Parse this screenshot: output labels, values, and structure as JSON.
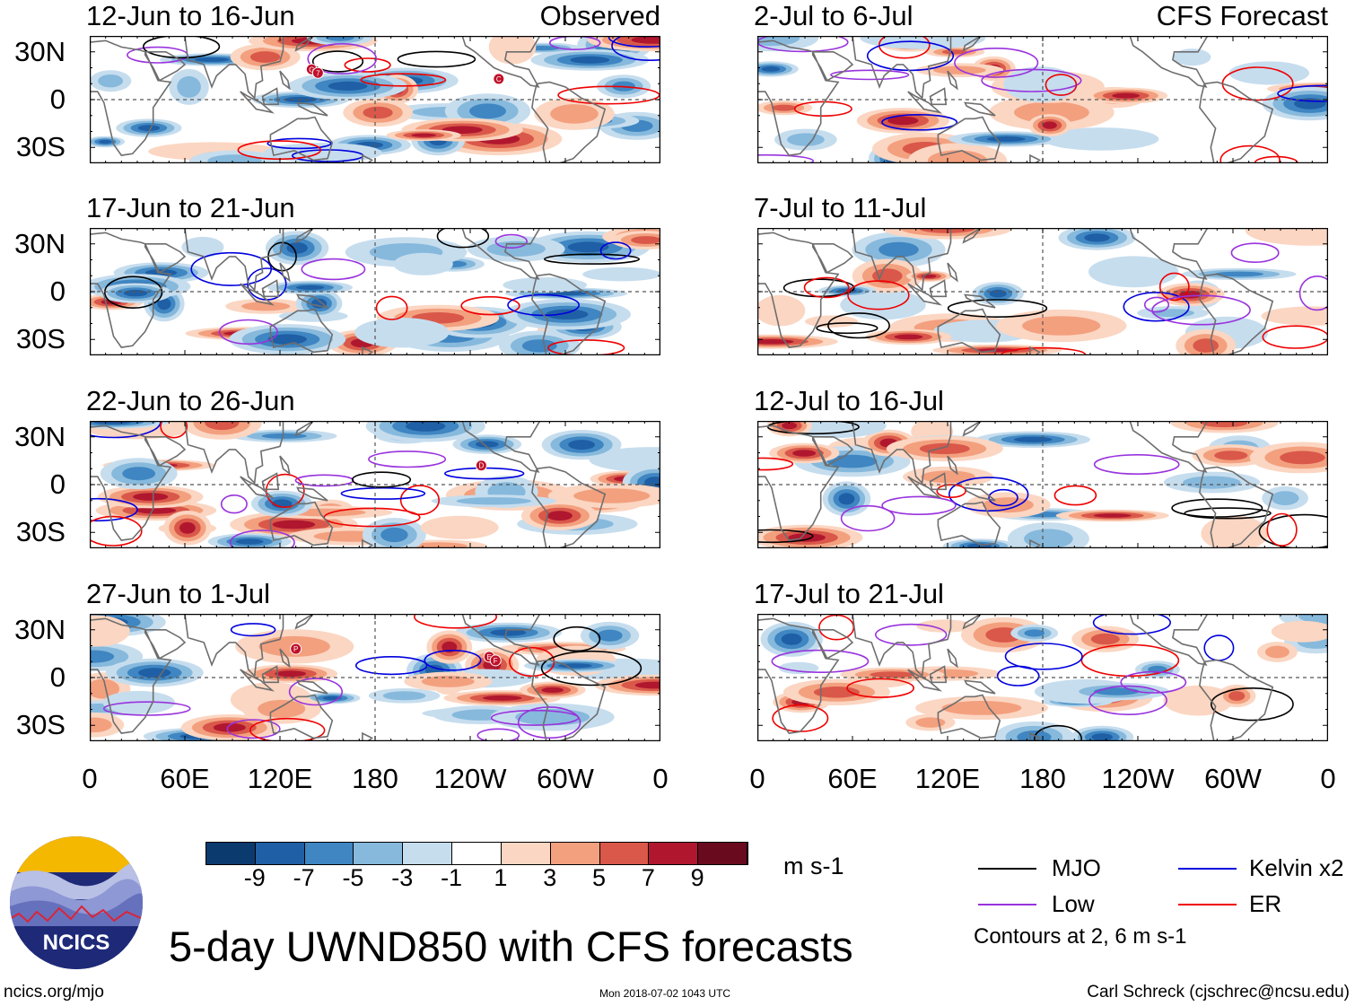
{
  "chart_data": {
    "type": "heatmap",
    "title": "5-day UWND850 with CFS forecasts",
    "variable": "850-hPa zonal wind anomaly",
    "units": "m s-1",
    "columns": [
      {
        "label": "Observed",
        "panels": [
          "12-Jun to 16-Jun",
          "17-Jun to 21-Jun",
          "22-Jun to 26-Jun",
          "27-Jun to 1-Jul"
        ]
      },
      {
        "label": "CFS Forecast",
        "panels": [
          "2-Jul to 6-Jul",
          "7-Jul to 11-Jul",
          "12-Jul to 16-Jul",
          "17-Jul to 21-Jul"
        ]
      }
    ],
    "y_tick_labels": [
      "30N",
      "0",
      "30S"
    ],
    "x_tick_labels": [
      "0",
      "60E",
      "120E",
      "180",
      "120W",
      "60W",
      "0"
    ],
    "xlim_degrees_east": [
      0,
      360
    ],
    "ylim_degrees": [
      -40,
      40
    ],
    "colorbar": {
      "levels": [
        -11,
        -9,
        -7,
        -5,
        -3,
        -1,
        1,
        3,
        5,
        7,
        9,
        11
      ],
      "tick_labels": [
        "-9",
        "-7",
        "-5",
        "-3",
        "-1",
        "1",
        "3",
        "5",
        "7",
        "9"
      ],
      "colors": [
        "#0b3a6e",
        "#1f5fa5",
        "#3f86c2",
        "#86b9dc",
        "#c6ddee",
        "#ffffff",
        "#fbd6c2",
        "#f3a07f",
        "#d9584a",
        "#b0172f",
        "#6a0a1f"
      ]
    },
    "contour_legend": [
      {
        "name": "MJO",
        "color": "#000000"
      },
      {
        "name": "Kelvin x2",
        "color": "#0000dd"
      },
      {
        "name": "Low",
        "color": "#9933dd"
      },
      {
        "name": "ER",
        "color": "#ee0000"
      }
    ],
    "contour_note": "Contours at 2, 6 m s-1",
    "storm_markers": [
      {
        "panel": "12-Jun to 16-Jun",
        "labels": [
          "G",
          "7"
        ],
        "lon": 140,
        "lat": 19
      },
      {
        "panel": "12-Jun to 16-Jun",
        "labels": [
          "C"
        ],
        "lon": 258,
        "lat": 13
      },
      {
        "panel": "22-Jun to 26-Jun",
        "labels": [
          "D"
        ],
        "lon": 247,
        "lat": 12
      },
      {
        "panel": "27-Jun to 1-Jul",
        "labels": [
          "P"
        ],
        "lon": 130,
        "lat": 18
      },
      {
        "panel": "27-Jun to 1-Jul",
        "labels": [
          "E",
          "F"
        ],
        "lon": 252,
        "lat": 13
      }
    ]
  },
  "branding": {
    "logo_text": "NCICS",
    "site": "ncics.org/mjo",
    "timestamp": "Mon 2018-07-02 1043 UTC",
    "author": "Carl Schreck (cjschrec@ncsu.edu)"
  }
}
